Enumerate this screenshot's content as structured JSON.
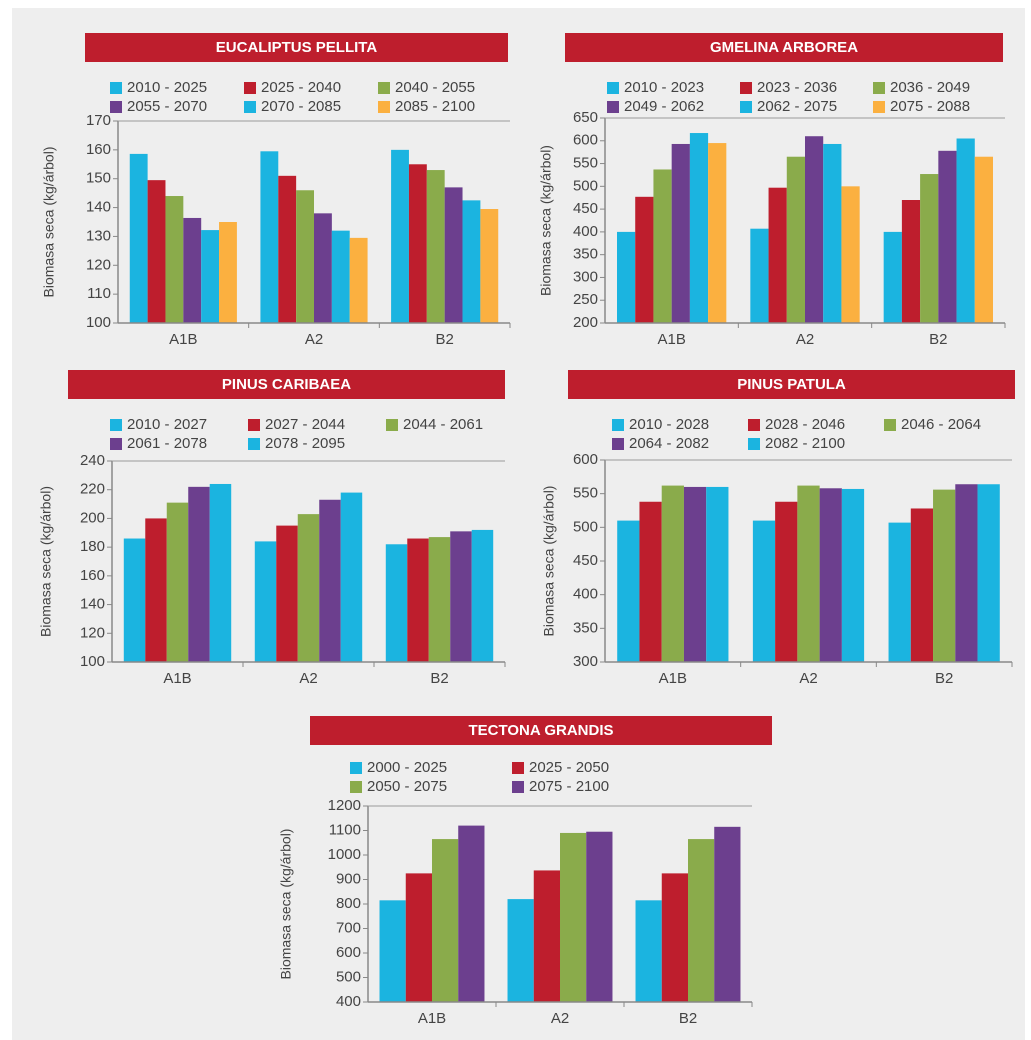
{
  "chart_data": [
    {
      "type": "bar",
      "title": "EUCALIPTUS PELLITA",
      "ylabel": "Biomasa seca (kg/árbol)",
      "categories": [
        "A1B",
        "A2",
        "B2"
      ],
      "ylim": [
        100,
        170
      ],
      "yticks": [
        100,
        110,
        120,
        130,
        140,
        150,
        160,
        170
      ],
      "series": [
        {
          "name": "2010 - 2025",
          "color": "#1bb4e0",
          "values": [
            158.6,
            159.5,
            160
          ]
        },
        {
          "name": "2025 - 2040",
          "color": "#be1e2d",
          "values": [
            149.5,
            151,
            155
          ]
        },
        {
          "name": "2040 - 2055",
          "color": "#8aab4b",
          "values": [
            144,
            146,
            153
          ]
        },
        {
          "name": "2055 - 2070",
          "color": "#6c3f8e",
          "values": [
            136.4,
            138,
            147
          ]
        },
        {
          "name": "2070 - 2085",
          "color": "#1bb4e0",
          "values": [
            132.2,
            132,
            142.5
          ]
        },
        {
          "name": "2085 - 2100",
          "color": "#fbb040",
          "values": [
            135,
            129.5,
            139.5
          ]
        }
      ]
    },
    {
      "type": "bar",
      "title": "GMELINA ARBOREA",
      "ylabel": "Biomasa seca (kg/árbol)",
      "categories": [
        "A1B",
        "A2",
        "B2"
      ],
      "ylim": [
        200,
        650
      ],
      "yticks": [
        200,
        250,
        300,
        350,
        400,
        450,
        500,
        550,
        600,
        650
      ],
      "series": [
        {
          "name": "2010 - 2023",
          "color": "#1bb4e0",
          "values": [
            400,
            407,
            400
          ]
        },
        {
          "name": "2023 - 2036",
          "color": "#be1e2d",
          "values": [
            477,
            497,
            470
          ]
        },
        {
          "name": "2036 - 2049",
          "color": "#8aab4b",
          "values": [
            537,
            565,
            527
          ]
        },
        {
          "name": "2049 - 2062",
          "color": "#6c3f8e",
          "values": [
            593,
            610,
            578
          ]
        },
        {
          "name": "2062 - 2075",
          "color": "#1bb4e0",
          "values": [
            617,
            593,
            605
          ]
        },
        {
          "name": "2075 - 2088",
          "color": "#fbb040",
          "values": [
            595,
            500,
            565
          ]
        }
      ]
    },
    {
      "type": "bar",
      "title": "PINUS CARIBAEA",
      "ylabel": "Biomasa seca (kg/árbol)",
      "categories": [
        "A1B",
        "A2",
        "B2"
      ],
      "ylim": [
        100,
        240
      ],
      "yticks": [
        100,
        120,
        140,
        160,
        180,
        200,
        220,
        240
      ],
      "series": [
        {
          "name": "2010 - 2027",
          "color": "#1bb4e0",
          "values": [
            186,
            184,
            182
          ]
        },
        {
          "name": "2027 - 2044",
          "color": "#be1e2d",
          "values": [
            200,
            195,
            186
          ]
        },
        {
          "name": "2044 - 2061",
          "color": "#8aab4b",
          "values": [
            211,
            203,
            187
          ]
        },
        {
          "name": "2061 - 2078",
          "color": "#6c3f8e",
          "values": [
            222,
            213,
            191
          ]
        },
        {
          "name": "2078 - 2095",
          "color": "#1bb4e0",
          "values": [
            224,
            218,
            192
          ]
        }
      ]
    },
    {
      "type": "bar",
      "title": "PINUS PATULA",
      "ylabel": "Biomasa seca (kg/árbol)",
      "categories": [
        "A1B",
        "A2",
        "B2"
      ],
      "ylim": [
        300,
        600
      ],
      "yticks": [
        300,
        350,
        400,
        450,
        500,
        550,
        600
      ],
      "series": [
        {
          "name": "2010 - 2028",
          "color": "#1bb4e0",
          "values": [
            510,
            510,
            507
          ]
        },
        {
          "name": "2028 - 2046",
          "color": "#be1e2d",
          "values": [
            538,
            538,
            528
          ]
        },
        {
          "name": "2046 - 2064",
          "color": "#8aab4b",
          "values": [
            562,
            562,
            556
          ]
        },
        {
          "name": "2064 - 2082",
          "color": "#6c3f8e",
          "values": [
            560,
            558,
            564
          ]
        },
        {
          "name": "2082 - 2100",
          "color": "#1bb4e0",
          "values": [
            560,
            557,
            564
          ]
        }
      ]
    },
    {
      "type": "bar",
      "title": "TECTONA GRANDIS",
      "ylabel": "Biomasa seca (kg/árbol)",
      "categories": [
        "A1B",
        "A2",
        "B2"
      ],
      "ylim": [
        400,
        1200
      ],
      "yticks": [
        400,
        500,
        600,
        700,
        800,
        900,
        1000,
        1100,
        1200
      ],
      "series": [
        {
          "name": "2000 - 2025",
          "color": "#1bb4e0",
          "values": [
            815,
            820,
            815
          ]
        },
        {
          "name": "2025 - 2050",
          "color": "#be1e2d",
          "values": [
            925,
            937,
            925
          ]
        },
        {
          "name": "2050 - 2075",
          "color": "#8aab4b",
          "values": [
            1065,
            1090,
            1065
          ]
        },
        {
          "name": "2075 - 2100",
          "color": "#6c3f8e",
          "values": [
            1120,
            1095,
            1115
          ]
        }
      ]
    }
  ]
}
